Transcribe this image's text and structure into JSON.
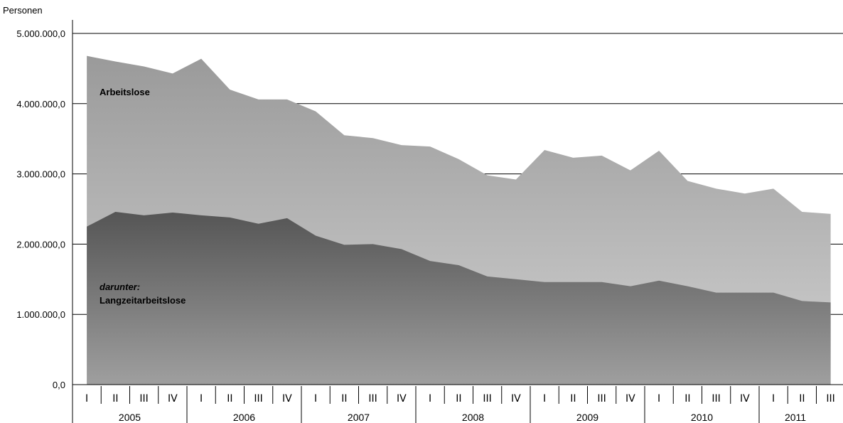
{
  "chart_data": {
    "type": "area",
    "ylabel": "Personen",
    "ylim": [
      0,
      5000000
    ],
    "yticks": [
      "0,0",
      "1.000.000,0",
      "2.000.000,0",
      "3.000.000,0",
      "4.000.000,0",
      "5.000.000,0"
    ],
    "ytick_values": [
      0,
      1000000,
      2000000,
      3000000,
      4000000,
      5000000
    ],
    "quarter_labels": [
      "I",
      "II",
      "III",
      "IV"
    ],
    "years": [
      {
        "label": "2005",
        "quarters": 4
      },
      {
        "label": "2006",
        "quarters": 4
      },
      {
        "label": "2007",
        "quarters": 4
      },
      {
        "label": "2008",
        "quarters": 4
      },
      {
        "label": "2009",
        "quarters": 4
      },
      {
        "label": "2010",
        "quarters": 4
      },
      {
        "label": "2011",
        "quarters": 3
      }
    ],
    "grid": true,
    "series": [
      {
        "name": "Arbeitslose",
        "values": [
          4680000,
          4600000,
          4530000,
          4430000,
          4640000,
          4200000,
          4060000,
          4060000,
          3890000,
          3550000,
          3510000,
          3410000,
          3390000,
          3210000,
          2980000,
          2920000,
          3340000,
          3230000,
          3260000,
          3050000,
          3330000,
          2900000,
          2790000,
          2720000,
          2790000,
          2460000,
          2430000
        ],
        "colors": [
          "#9a9a9a",
          "#d0d0d0"
        ]
      },
      {
        "name_prefix": "darunter:",
        "name": "Langzeitarbeitslose",
        "values": [
          2250000,
          2460000,
          2410000,
          2450000,
          2410000,
          2380000,
          2290000,
          2370000,
          2120000,
          1990000,
          2000000,
          1930000,
          1760000,
          1700000,
          1540000,
          1500000,
          1460000,
          1460000,
          1460000,
          1400000,
          1480000,
          1400000,
          1310000,
          1310000,
          1310000,
          1190000,
          1170000
        ],
        "colors": [
          "#555555",
          "#9f9f9f"
        ]
      }
    ]
  }
}
